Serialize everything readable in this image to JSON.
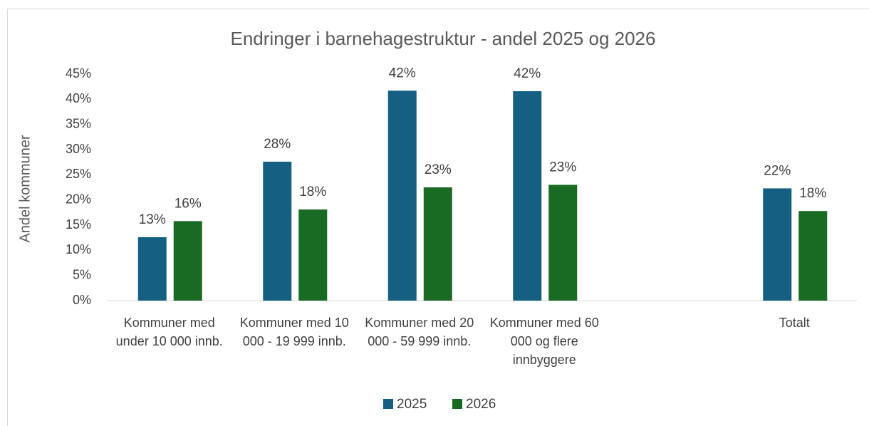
{
  "chart_data": {
    "type": "bar",
    "title": "Endringer i barnehagestruktur - andel 2025 og 2026",
    "y_label": "Andel kommuner",
    "categories": [
      "Kommuner med under 10 000 innb.",
      "Kommuner med 10 000 - 19 999 innb.",
      "Kommuner med 20 000 - 59 999 innb.",
      "Kommuner med 60 000 og flere innbyggere",
      null,
      "Totalt"
    ],
    "series": [
      {
        "name": "2025",
        "color": "#156082",
        "values": [
          12.6,
          27.6,
          41.7,
          41.6,
          null,
          22.3
        ],
        "value_labels": [
          "13%",
          "28%",
          "42%",
          "42%",
          null,
          "22%"
        ]
      },
      {
        "name": "2026",
        "color": "#196b24",
        "values": [
          15.8,
          18.1,
          22.5,
          23.0,
          null,
          17.8
        ],
        "value_labels": [
          "16%",
          "18%",
          "23%",
          "23%",
          null,
          "18%"
        ]
      }
    ],
    "ylim": [
      0,
      45
    ],
    "yticks": [
      {
        "value": 0,
        "label": "0%"
      },
      {
        "value": 5,
        "label": "5%"
      },
      {
        "value": 10,
        "label": "10%"
      },
      {
        "value": 15,
        "label": "15%"
      },
      {
        "value": 20,
        "label": "20%"
      },
      {
        "value": 25,
        "label": "25%"
      },
      {
        "value": 30,
        "label": "30%"
      },
      {
        "value": 35,
        "label": "35%"
      },
      {
        "value": 40,
        "label": "40%"
      },
      {
        "value": 45,
        "label": "45%"
      }
    ],
    "grid": false,
    "legend": "bottom"
  }
}
